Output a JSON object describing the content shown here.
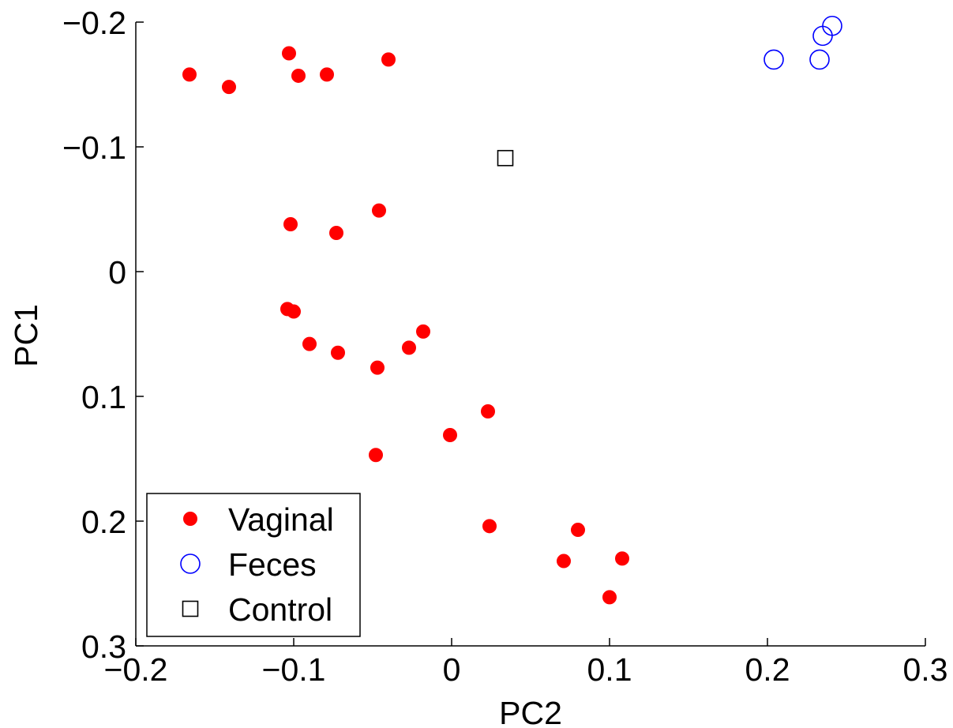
{
  "chart_data": {
    "type": "scatter",
    "title": "",
    "xlabel": "PC2",
    "ylabel": "PC1",
    "xlim": [
      -0.2,
      0.3
    ],
    "ylim": [
      -0.2,
      0.3
    ],
    "y_reversed": true,
    "grid": false,
    "legend_position": "bottom-left",
    "x_ticks": [
      -0.2,
      -0.1,
      0,
      0.1,
      0.2,
      0.3
    ],
    "x_tick_labels": [
      "−0.2",
      "−0.1",
      "0",
      "0.1",
      "0.2",
      "0.3"
    ],
    "y_ticks": [
      -0.2,
      -0.1,
      0,
      0.1,
      0.2,
      0.3
    ],
    "y_tick_labels": [
      "−0.2",
      "−0.1",
      "0",
      "0.1",
      "0.2",
      "0.3"
    ],
    "series": [
      {
        "name": "Vaginal",
        "marker": "filled-circle",
        "color": "#ff0000",
        "points": [
          [
            -0.166,
            -0.158
          ],
          [
            -0.141,
            -0.148
          ],
          [
            -0.103,
            -0.175
          ],
          [
            -0.097,
            -0.157
          ],
          [
            -0.079,
            -0.158
          ],
          [
            -0.04,
            -0.17
          ],
          [
            -0.102,
            -0.038
          ],
          [
            -0.073,
            -0.031
          ],
          [
            -0.046,
            -0.049
          ],
          [
            -0.104,
            0.03
          ],
          [
            -0.1,
            0.032
          ],
          [
            -0.09,
            0.058
          ],
          [
            -0.072,
            0.065
          ],
          [
            -0.047,
            0.077
          ],
          [
            -0.027,
            0.061
          ],
          [
            -0.018,
            0.048
          ],
          [
            0.023,
            0.112
          ],
          [
            -0.001,
            0.131
          ],
          [
            -0.048,
            0.147
          ],
          [
            0.024,
            0.204
          ],
          [
            0.08,
            0.207
          ],
          [
            0.071,
            0.232
          ],
          [
            0.108,
            0.23
          ],
          [
            0.1,
            0.261
          ]
        ]
      },
      {
        "name": "Feces",
        "marker": "open-circle",
        "color": "#0000ff",
        "points": [
          [
            0.204,
            -0.17
          ],
          [
            0.233,
            -0.17
          ],
          [
            0.235,
            -0.189
          ],
          [
            0.241,
            -0.197
          ]
        ]
      },
      {
        "name": "Control",
        "marker": "open-square",
        "color": "#000000",
        "points": [
          [
            0.034,
            -0.091
          ]
        ]
      }
    ]
  }
}
